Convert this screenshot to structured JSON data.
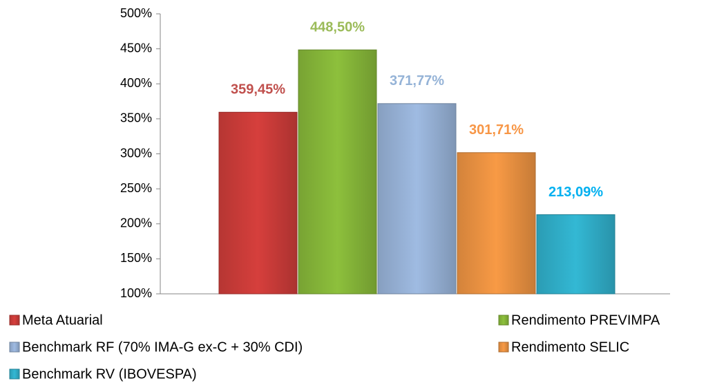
{
  "chart_data": {
    "type": "bar",
    "categories": [
      null
    ],
    "series": [
      {
        "name": "Meta Atuarial",
        "color": "#d63f3c",
        "label_color": "#c0504d",
        "values": [
          359.45
        ],
        "value_labels": [
          "359,45%"
        ]
      },
      {
        "name": "Rendimento PREVIMPA",
        "color": "#8dc03c",
        "label_color": "#9bbb59",
        "values": [
          448.5
        ],
        "value_labels": [
          "448,50%"
        ]
      },
      {
        "name": "Benchmark RF (70% IMA-G ex-C + 30% CDI)",
        "color": "#9fbbe2",
        "label_color": "#95b3d7",
        "values": [
          371.77
        ],
        "value_labels": [
          "371,77%"
        ]
      },
      {
        "name": "Rendimento SELIC",
        "color": "#f89a45",
        "label_color": "#f79646",
        "values": [
          301.71
        ],
        "value_labels": [
          "301,71%"
        ]
      },
      {
        "name": "Benchmark RV (IBOVESPA)",
        "color": "#33b8d4",
        "label_color": "#00b0f0",
        "values": [
          213.09
        ],
        "value_labels": [
          "213,09%"
        ]
      }
    ],
    "ylim": [
      100,
      500
    ],
    "yticks": [
      {
        "value": 100,
        "label": "100%"
      },
      {
        "value": 150,
        "label": "150%"
      },
      {
        "value": 200,
        "label": "200%"
      },
      {
        "value": 250,
        "label": "250%"
      },
      {
        "value": 300,
        "label": "300%"
      },
      {
        "value": 350,
        "label": "350%"
      },
      {
        "value": 400,
        "label": "400%"
      },
      {
        "value": 450,
        "label": "450%"
      },
      {
        "value": 500,
        "label": "500%"
      }
    ],
    "grid": false,
    "legend": "bottom"
  }
}
